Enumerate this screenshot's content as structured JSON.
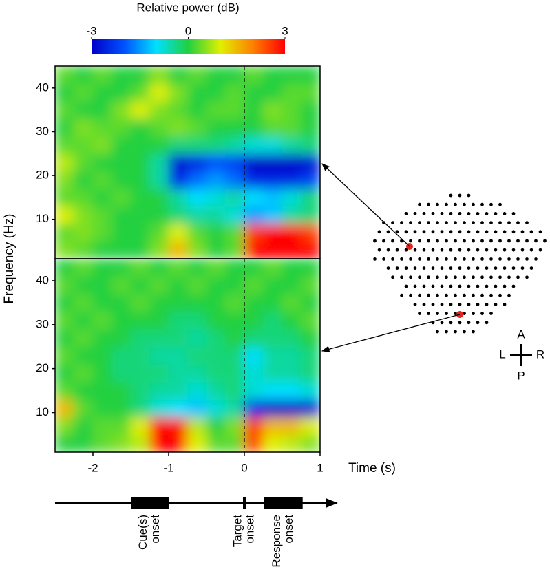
{
  "colorbar": {
    "title": "Relative power (dB)",
    "clim": [
      -3,
      3
    ],
    "ticks": [
      -3,
      0,
      3
    ]
  },
  "ylabel": "Frequency (Hz)",
  "chart_data": [
    {
      "type": "heatmap",
      "x": [
        -2.375,
        -2.125,
        -1.875,
        -1.625,
        -1.375,
        -1.125,
        -0.875,
        -0.625,
        -0.375,
        -0.125,
        0.125,
        0.375,
        0.625,
        0.875
      ],
      "y": [
        3,
        7,
        11,
        15,
        19,
        23,
        27,
        31,
        35,
        39,
        43
      ],
      "z": [
        [
          0.5,
          0.3,
          0,
          0,
          0,
          0.5,
          1.5,
          0.5,
          0,
          0.3,
          3,
          3,
          3,
          3
        ],
        [
          0.3,
          0.5,
          0.3,
          0,
          0,
          0.3,
          1,
          0.3,
          0,
          0.3,
          2.5,
          3,
          3,
          2.5
        ],
        [
          1,
          0.5,
          0.3,
          0,
          0,
          0,
          -0.3,
          -0.5,
          -0.5,
          -0.8,
          -1.5,
          -1.2,
          -0.5,
          -0.3
        ],
        [
          0.3,
          0.3,
          0,
          0.3,
          0,
          0,
          -0.5,
          -1,
          -0.8,
          -0.5,
          -1,
          -1.2,
          -0.8,
          -0.3
        ],
        [
          0.5,
          0,
          0.3,
          0,
          0,
          -0.5,
          -2.5,
          -1.8,
          -1.5,
          -1.8,
          -2.5,
          -2.5,
          -2.5,
          -2.2
        ],
        [
          0.8,
          0.3,
          0,
          0,
          0,
          -0.5,
          -2.8,
          -2.5,
          -2,
          -2.2,
          -3,
          -3,
          -3,
          -2.8
        ],
        [
          0.3,
          0.3,
          0.5,
          0,
          0,
          0,
          -0.3,
          -0.3,
          -0.3,
          -0.5,
          -0.8,
          -0.8,
          -0.5,
          -0.3
        ],
        [
          0,
          0.5,
          0.3,
          0.3,
          0,
          0.3,
          0.5,
          0.3,
          0,
          0,
          0,
          0.3,
          0.3,
          0
        ],
        [
          0.3,
          0,
          0,
          0.5,
          1,
          0.5,
          0.3,
          0,
          0.3,
          0.3,
          0,
          0.5,
          0.3,
          0
        ],
        [
          0,
          0.3,
          0,
          0,
          0.3,
          1,
          0.5,
          0,
          0,
          0.3,
          0,
          0,
          0.3,
          0.3
        ],
        [
          0.3,
          0,
          0.3,
          0,
          0,
          0.5,
          0,
          0.3,
          0,
          0,
          0.3,
          0,
          0,
          0
        ]
      ],
      "xlim": [
        -2.5,
        1
      ],
      "ylim": [
        1,
        45
      ],
      "yticks": [
        10,
        20,
        30,
        40
      ]
    },
    {
      "type": "heatmap",
      "x": [
        -2.375,
        -2.125,
        -1.875,
        -1.625,
        -1.375,
        -1.125,
        -0.875,
        -0.625,
        -0.375,
        -0.125,
        0.125,
        0.375,
        0.625,
        0.875
      ],
      "y": [
        3,
        7,
        11,
        15,
        19,
        23,
        27,
        31,
        35,
        39,
        43
      ],
      "z": [
        [
          0,
          0,
          0.3,
          0.5,
          0.8,
          3,
          3,
          1,
          0.3,
          0.3,
          2.5,
          1,
          0.8,
          0.5
        ],
        [
          0.5,
          0,
          0.3,
          0.3,
          1,
          3,
          2.8,
          0.8,
          0,
          0.5,
          2.5,
          1.5,
          1.5,
          1
        ],
        [
          1.5,
          0.3,
          0,
          0,
          -0.3,
          -0.8,
          -1,
          -1.2,
          -0.8,
          -0.5,
          -2.5,
          -3,
          -3,
          -2.8
        ],
        [
          0.3,
          0,
          0,
          0,
          -0.3,
          -0.5,
          -0.5,
          -0.8,
          -0.5,
          -0.3,
          -0.8,
          -1,
          -1,
          -0.8
        ],
        [
          0,
          0.3,
          0,
          -0.3,
          -0.3,
          -0.3,
          -0.5,
          -0.5,
          -0.3,
          -0.3,
          -0.8,
          -0.5,
          -0.5,
          -0.3
        ],
        [
          0.3,
          0,
          0,
          -0.3,
          -0.3,
          -0.5,
          -0.5,
          -0.3,
          -0.3,
          -0.3,
          -1,
          -0.5,
          -0.5,
          -0.3
        ],
        [
          0,
          0.3,
          0,
          0,
          -0.3,
          -0.3,
          -0.3,
          -0.5,
          -0.3,
          0,
          -0.3,
          -0.3,
          -0.3,
          0
        ],
        [
          0.3,
          0,
          0.3,
          0,
          0,
          0,
          -0.3,
          -0.3,
          0,
          0,
          0,
          -0.3,
          0,
          0.3
        ],
        [
          0,
          0.3,
          0,
          0,
          0.3,
          0,
          0,
          0,
          0,
          0.3,
          0,
          0,
          0.3,
          0
        ],
        [
          0.3,
          0,
          0,
          0.3,
          0,
          0.3,
          0,
          0.3,
          0,
          0,
          0.3,
          0,
          0,
          0.3
        ],
        [
          0,
          0.3,
          0,
          0,
          0.3,
          0,
          0.3,
          0,
          0.3,
          0,
          0,
          0.3,
          0,
          0
        ]
      ],
      "xlim": [
        -2.5,
        1
      ],
      "ylim": [
        1,
        45
      ],
      "yticks": [
        10,
        20,
        30,
        40
      ],
      "xticks": [
        -2,
        -1,
        0,
        1
      ],
      "xlabel": "Time (s)"
    }
  ],
  "timeline": [
    {
      "label": [
        "Cue(s)",
        "onset"
      ],
      "start": -1.5,
      "end": -1.0
    },
    {
      "label": [
        "Target",
        "onset"
      ],
      "start": 0,
      "end": 0
    },
    {
      "label": [
        "Response",
        "onset"
      ],
      "start": 0.26,
      "end": 0.77
    }
  ],
  "directions": {
    "anterior": "A",
    "posterior": "P",
    "left": "L",
    "right": "R"
  }
}
